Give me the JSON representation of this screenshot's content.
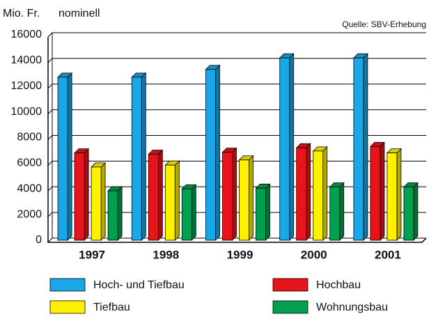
{
  "chart_data": {
    "type": "bar3d",
    "y_label": "Mio. Fr.",
    "subtitle": "nominell",
    "source": "Quelle: SBV-Erhebung",
    "categories": [
      "1997",
      "1998",
      "1999",
      "2000",
      "2001"
    ],
    "series": [
      {
        "name": "Hoch- und Tiefbau",
        "color": "#1aa7e8",
        "values": [
          12700,
          12700,
          13300,
          14200,
          14200
        ]
      },
      {
        "name": "Hochbau",
        "color": "#e8141b",
        "values": [
          6800,
          6700,
          6850,
          7200,
          7300
        ]
      },
      {
        "name": "Tiefbau",
        "color": "#fff000",
        "values": [
          5700,
          5850,
          6250,
          6950,
          6800
        ]
      },
      {
        "name": "Wohnungsbau",
        "color": "#00a050",
        "values": [
          3850,
          4000,
          4050,
          4150,
          4150
        ]
      }
    ],
    "ylim": [
      0,
      16000
    ],
    "yticks": [
      0,
      2000,
      4000,
      6000,
      8000,
      10000,
      12000,
      14000,
      16000
    ],
    "grid": true
  }
}
